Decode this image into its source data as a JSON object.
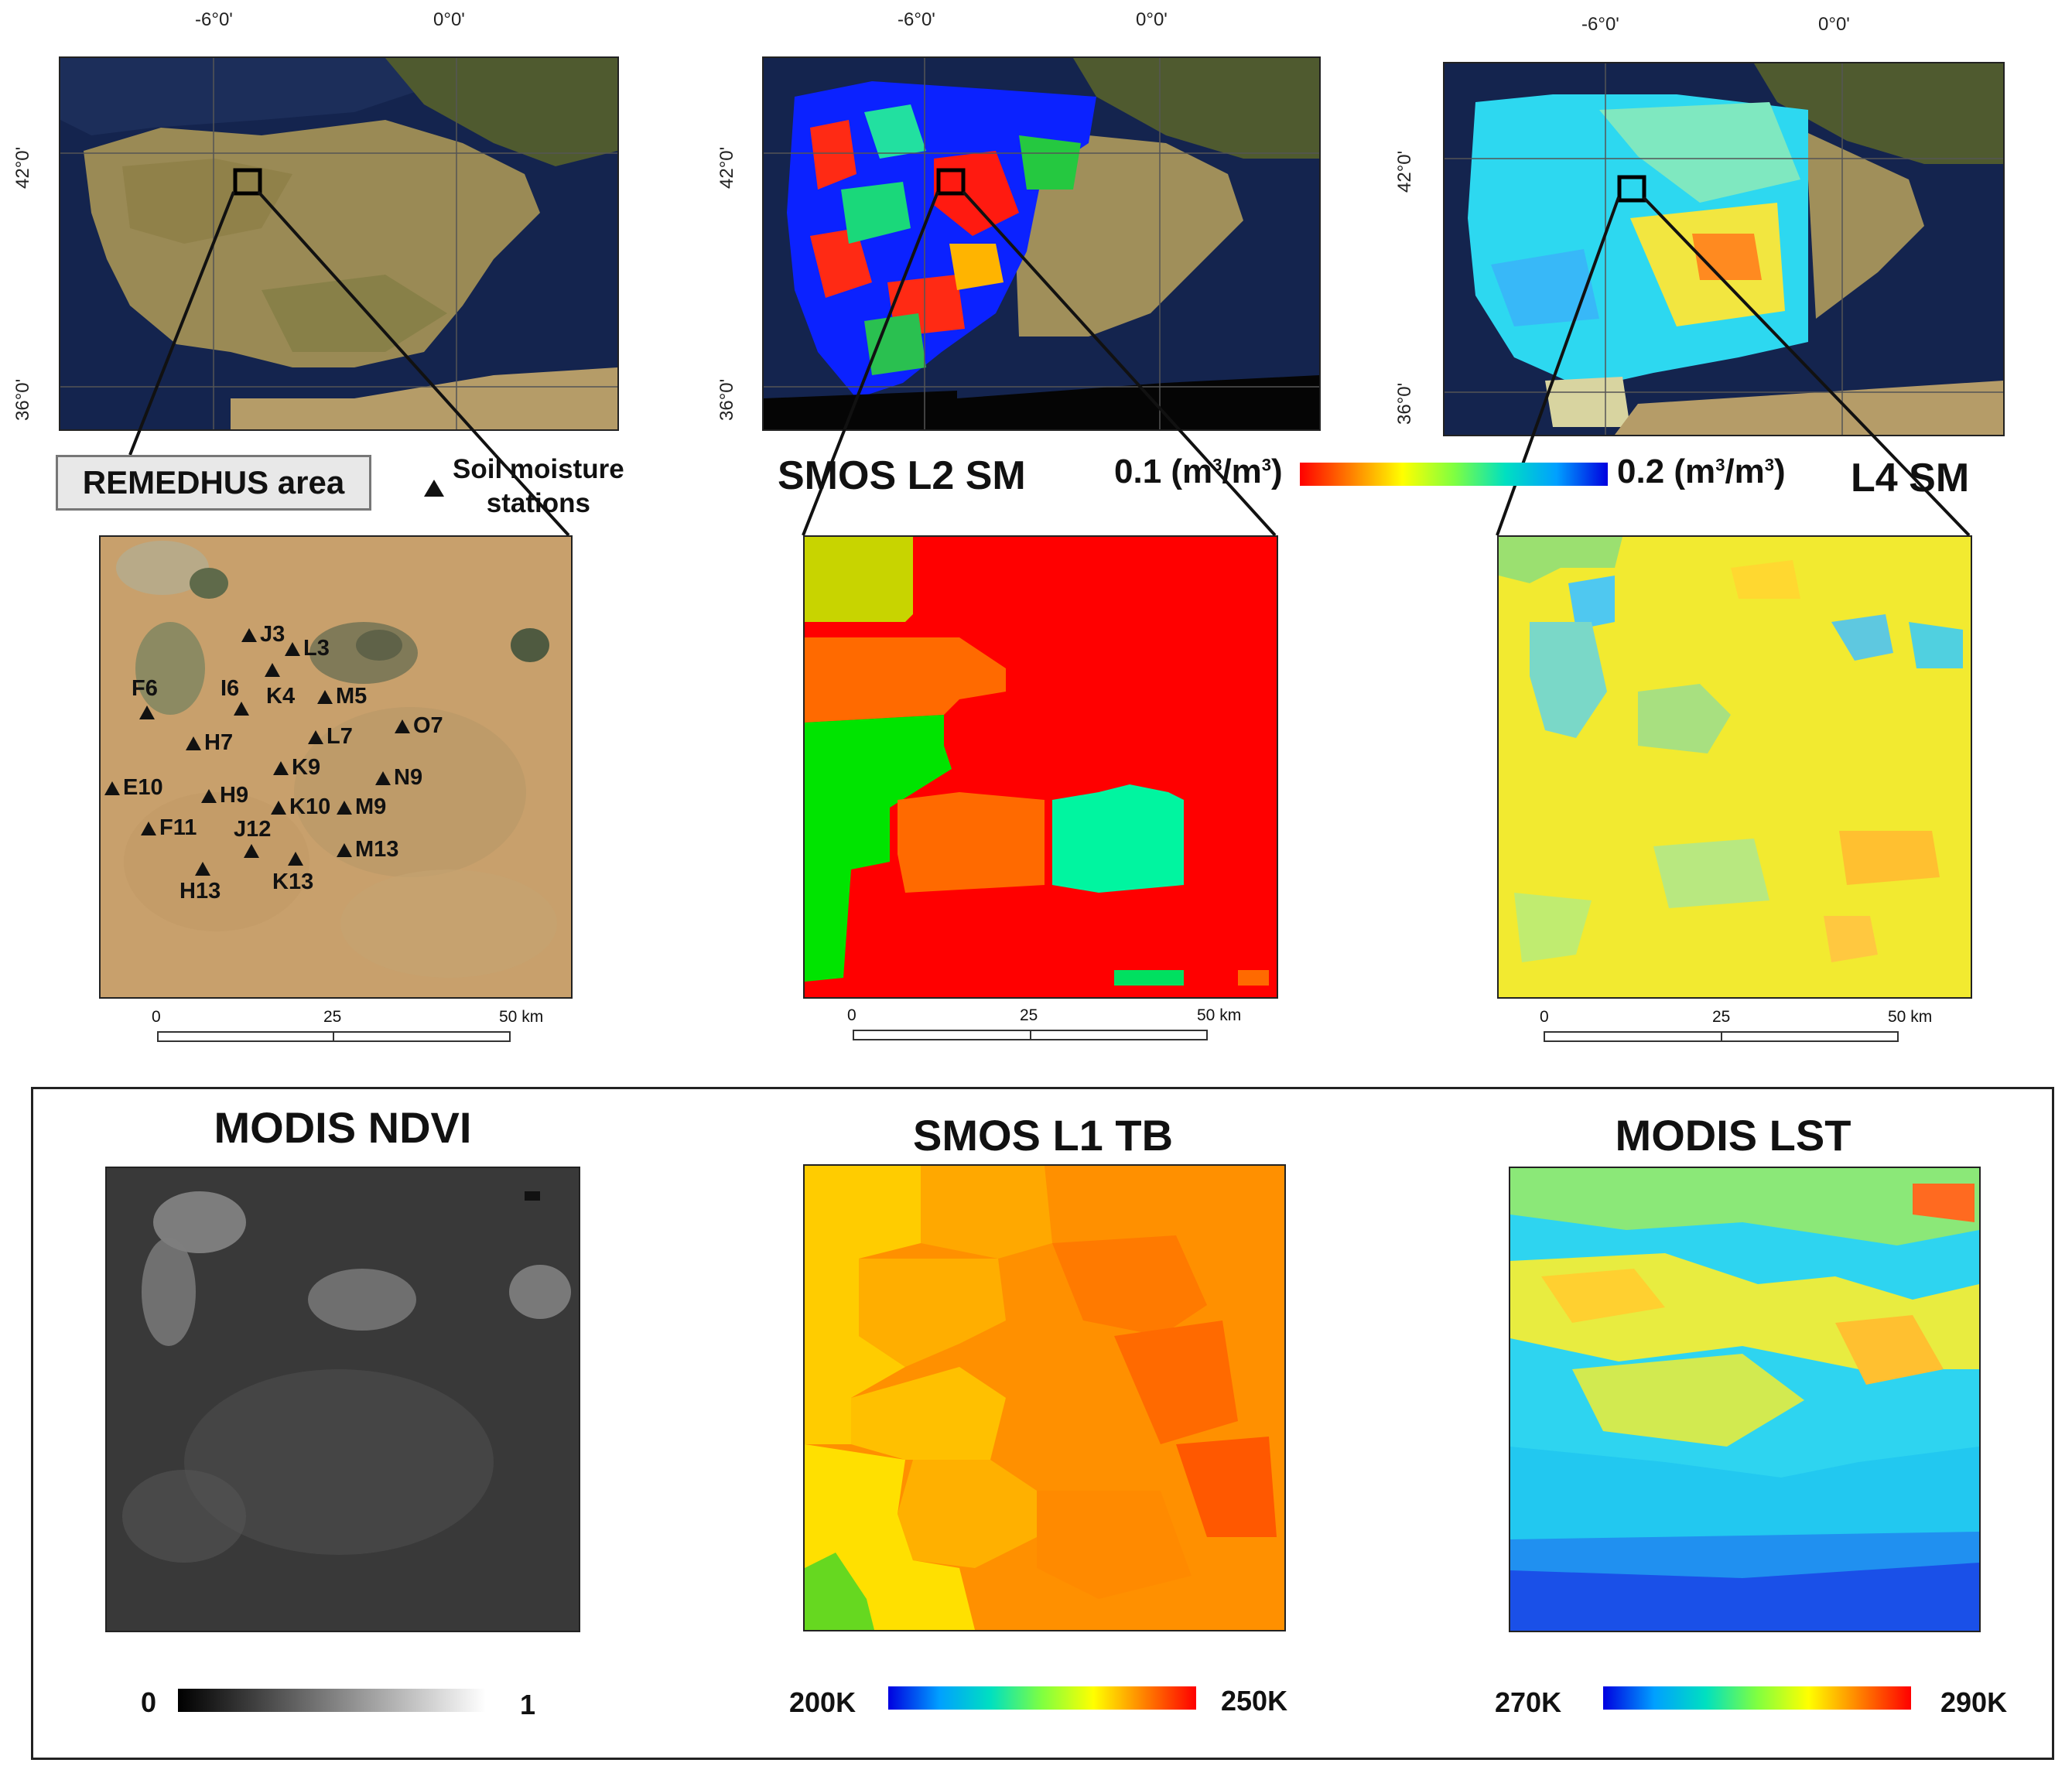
{
  "top_maps": {
    "lon_ticks": [
      "-6°0'",
      "0°0'"
    ],
    "lat_ticks": [
      "42°0'",
      "36°0'"
    ]
  },
  "remedhus": {
    "area_label": "REMEDHUS area",
    "legend_label": "Soil moisture\nstations",
    "stations": [
      "J3",
      "L3",
      "F6",
      "I6",
      "K4",
      "M5",
      "H7",
      "L7",
      "O7",
      "K9",
      "N9",
      "E10",
      "H9",
      "K10",
      "M9",
      "F11",
      "J12",
      "M13",
      "K13",
      "H13"
    ]
  },
  "smos_l2": {
    "title": "SMOS L2 SM"
  },
  "l4": {
    "title": "L4 SM"
  },
  "sm_colorbar": {
    "min_label": "0.1",
    "max_label": "0.2",
    "unit": "(m3/m3)",
    "colors": [
      "#ff0000",
      "#ffff00",
      "#00ff80",
      "#0000ff"
    ]
  },
  "scale_bar": {
    "ticks": [
      "0",
      "25",
      "50 km"
    ]
  },
  "bottom": {
    "ndvi": {
      "title": "MODIS NDVI",
      "min": "0",
      "max": "1"
    },
    "tb": {
      "title": "SMOS L1 TB",
      "min": "200K",
      "max": "250K"
    },
    "lst": {
      "title": "MODIS LST",
      "min": "270K",
      "max": "290K"
    }
  }
}
